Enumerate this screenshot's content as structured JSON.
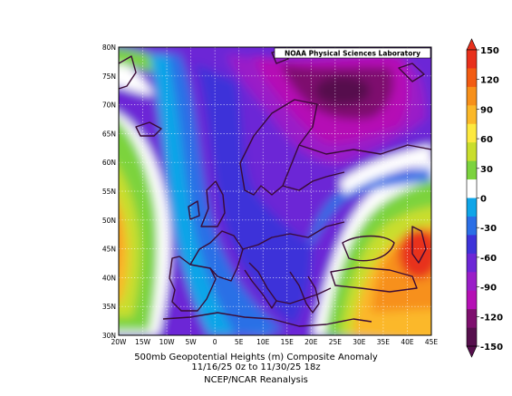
{
  "source_label": "NOAA Physical Sciences Laboratory",
  "caption": {
    "line1": "500mb Geopotential Heights (m)    Composite Anomaly",
    "line2": "11/16/25 0z  to 11/30/25 18z",
    "line3": "NCEP/NCAR Reanalysis"
  },
  "map": {
    "lon_labels": [
      "20W",
      "15W",
      "10W",
      "5W",
      "0",
      "5E",
      "10E",
      "15E",
      "20E",
      "25E",
      "30E",
      "35E",
      "40E",
      "45E"
    ],
    "lat_labels": [
      "30N",
      "35N",
      "40N",
      "45N",
      "50N",
      "55N",
      "60N",
      "65N",
      "70N",
      "75N",
      "80N"
    ],
    "lon_range": [
      -20,
      45
    ],
    "lat_range": [
      30,
      80
    ],
    "grid": "dotted",
    "anomaly_centers": [
      {
        "name": "trough-center",
        "lon": 27,
        "lat": 72.5,
        "value": -150
      },
      {
        "name": "ridge-center-east",
        "lon": 43,
        "lat": 45,
        "value": 90
      },
      {
        "name": "ridge-center-west",
        "lon": -20,
        "lat": 47,
        "value": 75
      }
    ]
  },
  "colorbar": {
    "tick_labels": [
      "150",
      "120",
      "90",
      "60",
      "30",
      "0",
      "-30",
      "-60",
      "-90",
      "-120",
      "-150"
    ],
    "colors": [
      "#e8301c",
      "#f25b12",
      "#f7901a",
      "#fbb829",
      "#fde93f",
      "#c9de2d",
      "#7cd33e",
      "#ffffff",
      "#0fa5e8",
      "#2b6fe6",
      "#3d33d9",
      "#6c26d6",
      "#9a1ec8",
      "#b510b5",
      "#7e0f6e",
      "#560f4d"
    ]
  }
}
